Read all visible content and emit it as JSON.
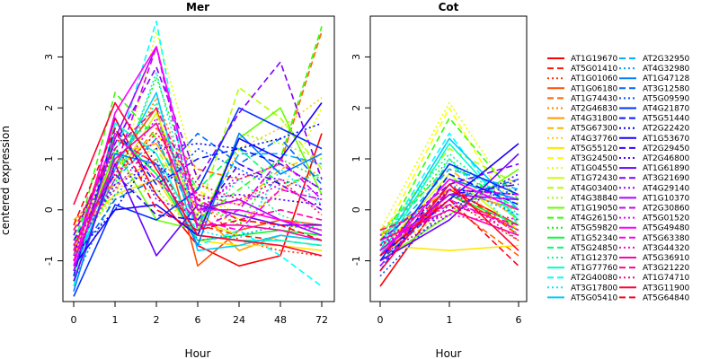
{
  "chart_data": {
    "type": "line",
    "ylabel": "centered expression",
    "ylim": [
      -1.8,
      3.8
    ],
    "yticks": [
      -1,
      0,
      1,
      2,
      3
    ],
    "panels": [
      {
        "title": "Mer",
        "xlabel": "Hour",
        "categories": [
          "0",
          "1",
          "2",
          "6",
          "24",
          "48",
          "72"
        ]
      },
      {
        "title": "Cot",
        "xlabel": "Hour",
        "categories": [
          "0",
          "1",
          "6"
        ]
      }
    ],
    "legend_position": "right",
    "series": [
      {
        "name": "AT1G19670",
        "color": "#ff0000",
        "dash": "solid",
        "mer": [
          -0.9,
          1.8,
          0.3,
          -0.7,
          -1.1,
          -0.9,
          1.5
        ],
        "cot": [
          -1.5,
          0.4,
          -0.3
        ]
      },
      {
        "name": "AT5G01410",
        "color": "#ff1a00",
        "dash": "dashed",
        "mer": [
          -0.5,
          1.4,
          0.9,
          -0.3,
          -0.5,
          -0.6,
          -0.7
        ],
        "cot": [
          -1.0,
          0.5,
          -0.5
        ]
      },
      {
        "name": "AT1G01060",
        "color": "#ff3300",
        "dash": "dotted",
        "mer": [
          -0.3,
          1.0,
          1.7,
          0.2,
          -0.6,
          -0.8,
          -0.9
        ],
        "cot": [
          -0.7,
          0.2,
          -0.6
        ]
      },
      {
        "name": "AT1G06180",
        "color": "#ff4d00",
        "dash": "solid",
        "mer": [
          -1.0,
          0.9,
          2.0,
          -1.1,
          -0.4,
          -0.2,
          -0.3
        ],
        "cot": [
          -0.9,
          0.3,
          -0.4
        ]
      },
      {
        "name": "AT1G74430",
        "color": "#ff6600",
        "dash": "dashed",
        "mer": [
          -0.6,
          0.6,
          1.6,
          0.8,
          0.6,
          0.9,
          3.5
        ],
        "cot": [
          -0.6,
          0.1,
          -0.9
        ]
      },
      {
        "name": "AT2G46830",
        "color": "#ff8000",
        "dash": "dotted",
        "mer": [
          -0.4,
          0.7,
          2.2,
          0.1,
          -0.3,
          0.4,
          0.8
        ],
        "cot": [
          -0.8,
          0.6,
          -0.5
        ]
      },
      {
        "name": "AT4G31800",
        "color": "#ff9900",
        "dash": "solid",
        "mer": [
          -0.8,
          1.1,
          1.3,
          0.0,
          -0.8,
          -0.5,
          -0.6
        ],
        "cot": [
          -0.5,
          0.4,
          0.0
        ]
      },
      {
        "name": "AT5G67300",
        "color": "#ffb300",
        "dash": "dashed",
        "mer": [
          -0.2,
          0.5,
          1.0,
          0.3,
          0.1,
          0.8,
          1.1
        ],
        "cot": [
          -0.4,
          0.8,
          -0.2
        ]
      },
      {
        "name": "AT4G37760",
        "color": "#ffcc00",
        "dash": "dotted",
        "mer": [
          -0.7,
          0.4,
          0.8,
          -0.5,
          1.2,
          1.6,
          2.2
        ],
        "cot": [
          -0.9,
          0.0,
          0.6
        ]
      },
      {
        "name": "AT5G55120",
        "color": "#ffe600",
        "dash": "solid",
        "mer": [
          -0.5,
          0.3,
          0.6,
          -0.6,
          -0.7,
          -0.7,
          -0.8
        ],
        "cot": [
          -0.7,
          -0.8,
          -0.7
        ]
      },
      {
        "name": "AT3G24500",
        "color": "#ffff00",
        "dash": "dashed",
        "mer": [
          -0.3,
          0.8,
          1.5,
          0.4,
          -0.2,
          -0.3,
          -0.4
        ],
        "cot": [
          -0.6,
          2.0,
          -0.3
        ]
      },
      {
        "name": "AT1G04550",
        "color": "#e6ff00",
        "dash": "dotted",
        "mer": [
          -0.6,
          0.2,
          3.5,
          0.6,
          -0.2,
          0.3,
          2.0
        ],
        "cot": [
          -0.4,
          2.1,
          0.1
        ]
      },
      {
        "name": "AT1G72430",
        "color": "#ccff00",
        "dash": "solid",
        "mer": [
          -0.9,
          0.6,
          1.9,
          -0.2,
          -0.5,
          -0.4,
          -0.5
        ],
        "cot": [
          -0.8,
          0.7,
          -0.4
        ]
      },
      {
        "name": "AT4G03400",
        "color": "#b3ff00",
        "dash": "dashed",
        "mer": [
          -0.4,
          0.9,
          1.2,
          -0.1,
          2.4,
          1.8,
          0.8
        ],
        "cot": [
          -0.5,
          1.2,
          0.5
        ]
      },
      {
        "name": "AT4G38840",
        "color": "#99ff00",
        "dash": "dotted",
        "mer": [
          -0.7,
          0.3,
          0.4,
          -0.5,
          1.5,
          1.3,
          1.0
        ],
        "cot": [
          -0.9,
          0.6,
          0.3
        ]
      },
      {
        "name": "AT1G19050",
        "color": "#66ff00",
        "dash": "solid",
        "mer": [
          -1.2,
          1.2,
          -0.2,
          -0.4,
          1.4,
          2.0,
          0.3
        ],
        "cot": [
          -1.0,
          -0.1,
          0.8
        ]
      },
      {
        "name": "AT4G26150",
        "color": "#33ff00",
        "dash": "dashed",
        "mer": [
          -0.8,
          2.3,
          1.4,
          -0.2,
          0.4,
          1.0,
          3.6
        ],
        "cot": [
          -0.7,
          1.8,
          0.2
        ]
      },
      {
        "name": "AT5G59820",
        "color": "#00ff00",
        "dash": "dotted",
        "mer": [
          -1.0,
          0.5,
          2.6,
          0.2,
          -0.3,
          1.0,
          0.6
        ],
        "cot": [
          -0.6,
          1.0,
          -0.2
        ]
      },
      {
        "name": "AT1G52340",
        "color": "#00ff33",
        "dash": "solid",
        "mer": [
          -1.3,
          1.5,
          0.7,
          -0.6,
          -0.5,
          -0.4,
          -0.5
        ],
        "cot": [
          -0.8,
          0.3,
          -0.3
        ]
      },
      {
        "name": "AT5G24850",
        "color": "#00ff66",
        "dash": "dashed",
        "mer": [
          -0.6,
          1.3,
          1.7,
          0.4,
          1.2,
          0.5,
          0.7
        ],
        "cot": [
          -0.6,
          0.9,
          0.0
        ]
      },
      {
        "name": "AT1G12370",
        "color": "#00ff99",
        "dash": "dotted",
        "mer": [
          -0.8,
          0.9,
          2.1,
          -0.3,
          0.6,
          -0.1,
          -0.4
        ],
        "cot": [
          -0.5,
          1.1,
          -0.1
        ]
      },
      {
        "name": "AT1G77760",
        "color": "#00ffcc",
        "dash": "solid",
        "mer": [
          -1.5,
          1.7,
          1.1,
          -0.5,
          -0.6,
          -0.6,
          -0.7
        ],
        "cot": [
          -0.9,
          1.3,
          -0.2
        ]
      },
      {
        "name": "AT2G40080",
        "color": "#00ffff",
        "dash": "dashed",
        "mer": [
          -1.1,
          1.0,
          3.7,
          -0.7,
          -0.4,
          -0.9,
          -1.5
        ],
        "cot": [
          -0.7,
          1.5,
          -0.3
        ]
      },
      {
        "name": "AT3G17800",
        "color": "#00e6ff",
        "dash": "dotted",
        "mer": [
          -0.5,
          0.4,
          2.7,
          -0.4,
          -0.6,
          0.8,
          0.1
        ],
        "cot": [
          -1.2,
          1.0,
          -0.5
        ]
      },
      {
        "name": "AT5G05410",
        "color": "#00ccff",
        "dash": "solid",
        "mer": [
          -1.2,
          0.8,
          2.3,
          -0.8,
          -0.7,
          -0.5,
          -0.6
        ],
        "cot": [
          -0.8,
          1.4,
          0.0
        ]
      },
      {
        "name": "AT2G32950",
        "color": "#00b3ff",
        "dash": "dashed",
        "mer": [
          -0.9,
          0.6,
          1.4,
          -0.3,
          1.1,
          1.1,
          0.9
        ],
        "cot": [
          -0.7,
          0.8,
          0.4
        ]
      },
      {
        "name": "AT4G32980",
        "color": "#0099ff",
        "dash": "dotted",
        "mer": [
          -1.4,
          0.3,
          1.0,
          -0.6,
          -0.5,
          -0.3,
          -0.4
        ],
        "cot": [
          -1.1,
          0.5,
          -0.1
        ]
      },
      {
        "name": "AT1G47128",
        "color": "#0080ff",
        "dash": "solid",
        "mer": [
          -1.6,
          1.1,
          0.9,
          -0.7,
          1.5,
          0.7,
          1.1
        ],
        "cot": [
          -0.9,
          0.6,
          0.2
        ]
      },
      {
        "name": "AT3G12580",
        "color": "#0066ff",
        "dash": "dashed",
        "mer": [
          -1.0,
          0.2,
          0.6,
          1.5,
          0.9,
          1.4,
          0.5
        ],
        "cot": [
          -1.0,
          0.2,
          0.6
        ]
      },
      {
        "name": "AT5G09590",
        "color": "#004dff",
        "dash": "dotted",
        "mer": [
          -0.7,
          1.2,
          0.3,
          1.2,
          0.8,
          0.4,
          0.2
        ],
        "cot": [
          -1.3,
          0.1,
          0.4
        ]
      },
      {
        "name": "AT4G21870",
        "color": "#0033ff",
        "dash": "solid",
        "mer": [
          -1.7,
          0.1,
          -0.2,
          0.4,
          2.0,
          1.6,
          1.2
        ],
        "cot": [
          -1.0,
          0.9,
          0.3
        ]
      },
      {
        "name": "AT5G51440",
        "color": "#001aff",
        "dash": "dashed",
        "mer": [
          -1.3,
          1.6,
          0.5,
          1.0,
          1.2,
          0.9,
          0.4
        ],
        "cot": [
          -1.2,
          0.7,
          0.1
        ]
      },
      {
        "name": "AT2G22420",
        "color": "#0000ff",
        "dash": "dotted",
        "mer": [
          -0.9,
          0.0,
          1.2,
          1.3,
          1.2,
          1.4,
          1.7
        ],
        "cot": [
          -1.1,
          0.4,
          0.3
        ]
      },
      {
        "name": "AT1G53670",
        "color": "#1a00ff",
        "dash": "solid",
        "mer": [
          -1.1,
          0.0,
          0.1,
          -0.5,
          1.4,
          1.0,
          2.1
        ],
        "cot": [
          -0.9,
          0.2,
          1.3
        ]
      },
      {
        "name": "AT2G29450",
        "color": "#3300ff",
        "dash": "dashed",
        "mer": [
          -0.6,
          0.7,
          -0.1,
          -0.2,
          0.9,
          0.5,
          0.0
        ],
        "cot": [
          -0.8,
          0.3,
          0.5
        ]
      },
      {
        "name": "AT2G46800",
        "color": "#4d00ff",
        "dash": "dotted",
        "mer": [
          -0.8,
          0.5,
          0.9,
          0.2,
          0.3,
          0.2,
          0.1
        ],
        "cot": [
          -0.7,
          0.0,
          0.7
        ]
      },
      {
        "name": "AT1G61890",
        "color": "#6600ff",
        "dash": "solid",
        "mer": [
          -1.4,
          0.9,
          -0.9,
          0.1,
          -0.1,
          -0.3,
          -0.3
        ],
        "cot": [
          -1.0,
          -0.2,
          1.1
        ]
      },
      {
        "name": "AT3G21690",
        "color": "#8000ff",
        "dash": "dashed",
        "mer": [
          -0.5,
          1.3,
          2.8,
          0.6,
          1.9,
          2.9,
          0.6
        ],
        "cot": [
          -0.6,
          0.5,
          0.9
        ]
      },
      {
        "name": "AT4G29140",
        "color": "#9900ff",
        "dash": "dotted",
        "mer": [
          -1.0,
          1.8,
          0.2,
          -0.1,
          0.7,
          0.6,
          0.3
        ],
        "cot": [
          -0.9,
          -0.1,
          0.6
        ]
      },
      {
        "name": "AT1G10370",
        "color": "#b300ff",
        "dash": "solid",
        "mer": [
          -1.2,
          1.4,
          3.2,
          0.0,
          0.2,
          -0.2,
          -0.5
        ],
        "cot": [
          -0.8,
          0.3,
          0.2
        ]
      },
      {
        "name": "AT2G30860",
        "color": "#cc00ff",
        "dash": "dashed",
        "mer": [
          -0.7,
          0.8,
          3.2,
          -0.4,
          0.0,
          1.0,
          0.2
        ],
        "cot": [
          -1.1,
          0.4,
          0.3
        ]
      },
      {
        "name": "AT5G01520",
        "color": "#e600ff",
        "dash": "dotted",
        "mer": [
          -0.9,
          0.6,
          1.8,
          0.0,
          0.6,
          0.9,
          0.4
        ],
        "cot": [
          -0.7,
          0.1,
          -0.2
        ]
      },
      {
        "name": "AT5G49480",
        "color": "#ff00ff",
        "dash": "solid",
        "mer": [
          -1.1,
          1.9,
          3.2,
          0.0,
          0.0,
          -0.2,
          -0.4
        ],
        "cot": [
          -0.9,
          0.6,
          0.0
        ]
      },
      {
        "name": "AT5G63380",
        "color": "#ff00e6",
        "dash": "dashed",
        "mer": [
          -0.8,
          1.5,
          0.6,
          -0.2,
          -0.4,
          0.4,
          0.2
        ],
        "cot": [
          -0.8,
          0.2,
          -0.4
        ]
      },
      {
        "name": "AT3G44320",
        "color": "#ff00cc",
        "dash": "dotted",
        "mer": [
          -0.6,
          0.4,
          1.4,
          0.3,
          0.1,
          0.5,
          0.0
        ],
        "cot": [
          -0.5,
          -0.1,
          -0.3
        ]
      },
      {
        "name": "AT5G36910",
        "color": "#ff00b3",
        "dash": "solid",
        "mer": [
          -1.0,
          1.0,
          1.7,
          -0.3,
          -0.3,
          -0.4,
          -0.6
        ],
        "cot": [
          -0.6,
          0.0,
          -0.5
        ]
      },
      {
        "name": "AT3G21220",
        "color": "#ff0099",
        "dash": "dashed",
        "mer": [
          -0.4,
          1.2,
          2.0,
          0.2,
          -0.2,
          0.0,
          -0.2
        ],
        "cot": [
          -0.4,
          0.1,
          -0.3
        ]
      },
      {
        "name": "AT1G74710",
        "color": "#ff0066",
        "dash": "dotted",
        "mer": [
          -0.7,
          0.7,
          1.5,
          0.5,
          0.2,
          0.6,
          -0.1
        ],
        "cot": [
          -0.7,
          0.4,
          -0.6
        ]
      },
      {
        "name": "AT3G11900",
        "color": "#ff0033",
        "dash": "solid",
        "mer": [
          0.1,
          2.1,
          0.8,
          -0.5,
          -0.6,
          -0.7,
          -0.9
        ],
        "cot": [
          -1.2,
          0.5,
          -0.8
        ]
      },
      {
        "name": "AT5G64840",
        "color": "#ff001a",
        "dash": "dashed",
        "mer": [
          -0.3,
          1.6,
          0.0,
          -0.4,
          -0.2,
          -0.3,
          -0.6
        ],
        "cot": [
          -0.9,
          0.2,
          -1.1
        ]
      }
    ]
  }
}
